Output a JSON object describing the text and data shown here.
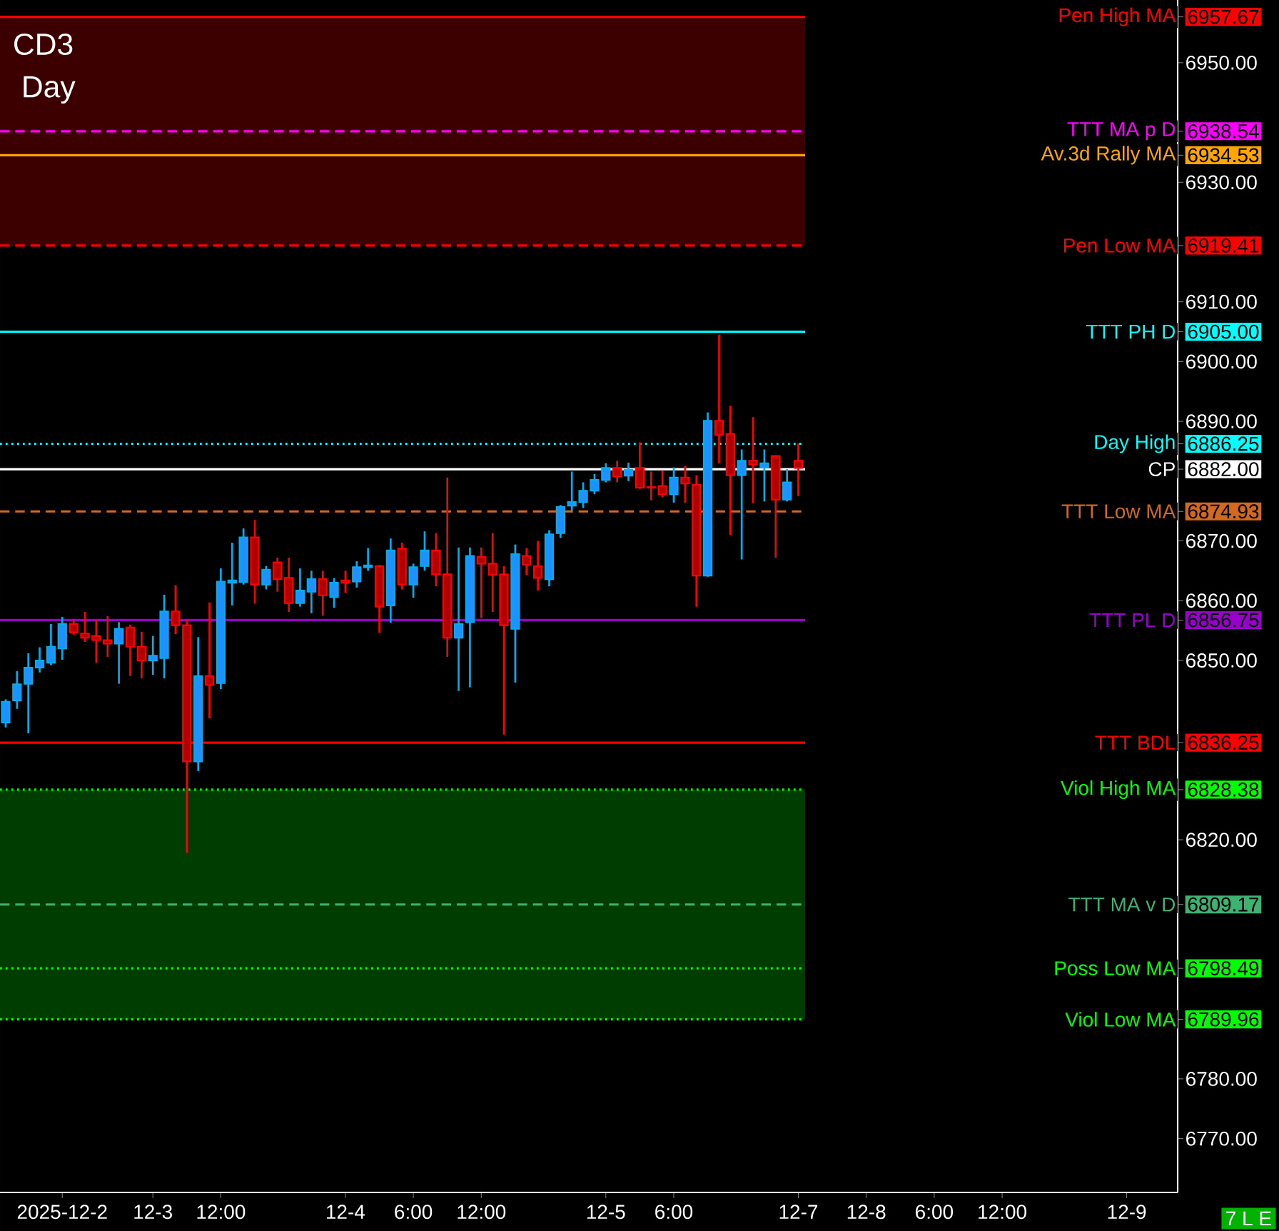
{
  "chart_data": {
    "type": "candlestick",
    "title": "CD3",
    "subtitle": "Day",
    "categories": [
      null,
      null,
      null,
      null,
      null,
      "2025-12-2",
      null,
      null,
      null,
      null,
      null,
      null,
      null,
      "12-3",
      null,
      null,
      null,
      null,
      null,
      "12:00",
      null,
      null,
      null,
      null,
      null,
      null,
      null,
      null,
      null,
      null,
      "12-4",
      null,
      null,
      null,
      null,
      null,
      "6:00",
      null,
      null,
      null,
      null,
      null,
      "12:00",
      null,
      null,
      null,
      null,
      null,
      null,
      null,
      null,
      null,
      null,
      "12-5",
      null,
      null,
      null,
      null,
      null,
      "6:00",
      null,
      null,
      null,
      null,
      null,
      null,
      null,
      null,
      null,
      null,
      "12-7",
      null,
      null,
      null,
      null,
      null,
      "12-8",
      null,
      null,
      null,
      null,
      null,
      "6:00",
      null,
      null,
      null,
      null,
      null,
      "12:00",
      null,
      null,
      null,
      null,
      null,
      null,
      null,
      null,
      null,
      null,
      "12-9",
      null,
      null,
      null,
      null
    ],
    "ohlc": [
      [
        6839.6,
        6843.5,
        6838.8,
        6843.1
      ],
      [
        6843.3,
        6848.2,
        6841.9,
        6846.0
      ],
      [
        6846.1,
        6851.2,
        6837.8,
        6848.8
      ],
      [
        6848.8,
        6852.2,
        6848.0,
        6850.0
      ],
      [
        6849.6,
        6856.1,
        6849.2,
        6852.3
      ],
      [
        6852.0,
        6857.3,
        6850.1,
        6856.1
      ],
      [
        6856.1,
        6856.9,
        6854.3,
        6854.7
      ],
      [
        6854.5,
        6858.1,
        6853.1,
        6853.8
      ],
      [
        6854.1,
        6856.8,
        6849.6,
        6853.4
      ],
      [
        6853.4,
        6857.4,
        6850.6,
        6852.8
      ],
      [
        6852.8,
        6856.4,
        6846.1,
        6855.3
      ],
      [
        6855.5,
        6856.0,
        6847.4,
        6852.3
      ],
      [
        6852.3,
        6854.8,
        6847.0,
        6850.0
      ],
      [
        6850.0,
        6854.1,
        6847.6,
        6850.8
      ],
      [
        6850.4,
        6861.0,
        6847.0,
        6858.2
      ],
      [
        6858.2,
        6862.6,
        6854.4,
        6855.9
      ],
      [
        6855.9,
        6856.9,
        6817.8,
        6833.1
      ],
      [
        6833.1,
        6853.9,
        6831.5,
        6847.4
      ],
      [
        6847.4,
        6859.7,
        6840.3,
        6845.9
      ],
      [
        6846.2,
        6865.4,
        6845.2,
        6863.2
      ],
      [
        6863.0,
        6869.7,
        6859.2,
        6863.4
      ],
      [
        6863.1,
        6872.1,
        6862.7,
        6870.6
      ],
      [
        6870.6,
        6873.5,
        6859.5,
        6862.7
      ],
      [
        6862.7,
        6865.8,
        6861.9,
        6865.2
      ],
      [
        6866.4,
        6867.2,
        6861.5,
        6863.6
      ],
      [
        6863.8,
        6867.2,
        6858.1,
        6859.6
      ],
      [
        6859.6,
        6865.4,
        6859.0,
        6861.7
      ],
      [
        6861.5,
        6865.0,
        6857.9,
        6863.6
      ],
      [
        6863.6,
        6865.0,
        6857.5,
        6860.9
      ],
      [
        6860.6,
        6863.8,
        6858.8,
        6863.0
      ],
      [
        6863.4,
        6865.0,
        6861.3,
        6863.0
      ],
      [
        6863.2,
        6866.6,
        6862.2,
        6865.6
      ],
      [
        6865.6,
        6868.8,
        6865.0,
        6865.9
      ],
      [
        6865.8,
        6866.0,
        6854.6,
        6859.0
      ],
      [
        6859.2,
        6870.4,
        6856.3,
        6868.4
      ],
      [
        6868.7,
        6869.7,
        6861.9,
        6862.7
      ],
      [
        6862.7,
        6866.2,
        6860.5,
        6865.6
      ],
      [
        6865.8,
        6871.6,
        6865.0,
        6868.4
      ],
      [
        6868.4,
        6871.3,
        6862.4,
        6864.4
      ],
      [
        6864.4,
        6880.6,
        6850.6,
        6853.8
      ],
      [
        6853.8,
        6868.9,
        6844.9,
        6856.1
      ],
      [
        6856.4,
        6868.9,
        6845.5,
        6867.5
      ],
      [
        6867.3,
        6868.9,
        6857.1,
        6866.2
      ],
      [
        6866.2,
        6871.3,
        6858.1,
        6864.3
      ],
      [
        6864.4,
        6865.8,
        6837.6,
        6855.9
      ],
      [
        6855.3,
        6869.4,
        6846.3,
        6867.8
      ],
      [
        6867.5,
        6868.8,
        6864.3,
        6866.0
      ],
      [
        6865.8,
        6870.0,
        6861.7,
        6863.8
      ],
      [
        6863.6,
        6871.8,
        6862.4,
        6871.1
      ],
      [
        6871.3,
        6876.0,
        6870.5,
        6875.7
      ],
      [
        6875.9,
        6881.6,
        6875.1,
        6876.5
      ],
      [
        6876.5,
        6879.8,
        6875.5,
        6878.4
      ],
      [
        6878.4,
        6881.2,
        6877.8,
        6880.2
      ],
      [
        6880.2,
        6883.0,
        6879.8,
        6882.2
      ],
      [
        6882.2,
        6883.4,
        6879.8,
        6880.8
      ],
      [
        6880.9,
        6883.1,
        6880.0,
        6881.9
      ],
      [
        6882.2,
        6886.5,
        6878.7,
        6878.9
      ],
      [
        6879.0,
        6881.6,
        6876.8,
        6878.9
      ],
      [
        6879.2,
        6881.8,
        6877.3,
        6877.8
      ],
      [
        6877.8,
        6882.3,
        6876.4,
        6880.6
      ],
      [
        6880.6,
        6882.6,
        6876.4,
        6879.6
      ],
      [
        6879.4,
        6881.0,
        6859.0,
        6864.2
      ],
      [
        6864.2,
        6891.5,
        6864.0,
        6890.1
      ],
      [
        6890.1,
        6904.5,
        6883.0,
        6887.7
      ],
      [
        6887.9,
        6892.6,
        6871.0,
        6881.0
      ],
      [
        6881.0,
        6885.3,
        6866.9,
        6883.4
      ],
      [
        6883.4,
        6890.7,
        6876.3,
        6882.8
      ],
      [
        6882.3,
        6885.3,
        6876.6,
        6883.0
      ],
      [
        6884.2,
        6884.3,
        6867.2,
        6876.9
      ],
      [
        6876.9,
        6882.0,
        6876.6,
        6879.8
      ],
      [
        6883.4,
        6886.3,
        6877.5,
        6882.2
      ],
      null,
      null,
      null,
      null,
      null,
      null,
      null,
      null,
      null,
      null,
      null,
      null,
      null,
      null,
      null,
      null,
      null,
      null,
      null,
      null,
      null,
      null,
      null,
      null,
      null,
      null,
      null,
      null,
      null,
      null,
      null,
      null,
      null
    ],
    "colors": [
      "#1e90ff",
      "#1e90ff",
      "#1e90ff",
      "#1e90ff",
      "#1e90ff",
      "#1e90ff",
      "#b00000",
      "#b00000",
      "#b00000",
      "#b00000",
      "#1e90ff",
      "#b00000",
      "#b00000",
      "#1e90ff",
      "#1e90ff",
      "#b00000",
      "#b00000",
      "#1e90ff",
      "#b00000",
      "#1e90ff",
      "#1e90ff",
      "#1e90ff",
      "#b00000",
      "#1e90ff",
      "#b00000",
      "#b00000",
      "#1e90ff",
      "#1e90ff",
      "#b00000",
      "#1e90ff",
      "#b00000",
      "#1e90ff",
      "#1e90ff",
      "#b00000",
      "#1e90ff",
      "#b00000",
      "#1e90ff",
      "#1e90ff",
      "#b00000",
      "#b00000",
      "#1e90ff",
      "#1e90ff",
      "#b00000",
      "#b00000",
      "#b00000",
      "#1e90ff",
      "#b00000",
      "#b00000",
      "#1e90ff",
      "#1e90ff",
      "#1e90ff",
      "#1e90ff",
      "#1e90ff",
      "#1e90ff",
      "#b00000",
      "#1e90ff",
      "#b00000",
      "#b00000",
      "#b00000",
      "#1e90ff",
      "#b00000",
      "#b00000",
      "#1e90ff",
      "#b00000",
      "#b00000",
      "#1e90ff",
      "#b00000",
      "#1e90ff",
      "#b00000",
      "#1e90ff",
      "#b00000",
      null,
      null,
      null,
      null,
      null,
      null,
      null,
      null,
      null,
      null,
      null,
      null,
      null,
      null,
      null,
      null,
      null,
      null,
      null,
      null,
      null,
      null,
      null,
      null,
      null,
      null,
      null,
      null,
      null,
      null,
      null,
      null,
      null
    ],
    "ylim": [
      6761,
      6960.5
    ],
    "yticks": [
      {
        "value": 6957.67,
        "label": "6957.67"
      },
      {
        "value": 6950,
        "label": "6950.00"
      },
      {
        "value": 6938.54,
        "label": "6938.54"
      },
      {
        "value": 6934.53,
        "label": "6934.53"
      },
      {
        "value": 6930,
        "label": "6930.00"
      },
      {
        "value": 6919.41,
        "label": "6919.41"
      },
      {
        "value": 6910,
        "label": "6910.00"
      },
      {
        "value": 6905,
        "label": "6905.00"
      },
      {
        "value": 6900,
        "label": "6900.00"
      },
      {
        "value": 6890,
        "label": "6890.00"
      },
      {
        "value": 6886.25,
        "label": "6886.25"
      },
      {
        "value": 6882,
        "label": "6882.00"
      },
      {
        "value": 6874.93,
        "label": "6874.93"
      },
      {
        "value": 6870,
        "label": "6870.00"
      },
      {
        "value": 6860,
        "label": "6860.00"
      },
      {
        "value": 6856.75,
        "label": "6856.75"
      },
      {
        "value": 6850,
        "label": "6850.00"
      },
      {
        "value": 6836.25,
        "label": "6836.25"
      },
      {
        "value": 6828.38,
        "label": "6828.38"
      },
      {
        "value": 6820,
        "label": "6820.00"
      },
      {
        "value": 6809.17,
        "label": "6809.17"
      },
      {
        "value": 6798.49,
        "label": "6798.49"
      },
      {
        "value": 6789.96,
        "label": "6789.96"
      },
      {
        "value": 6780,
        "label": "6780.00"
      },
      {
        "value": 6770,
        "label": "6770.00"
      }
    ],
    "bands": [
      {
        "axis": "y",
        "from": 6919.41,
        "to": 6957.67,
        "color": "#3d0000"
      },
      {
        "axis": "y",
        "from": 6789.96,
        "to": 6828.38,
        "color": "#003d00"
      }
    ],
    "ref_lines": [
      {
        "axis": "y",
        "value": 6957.67,
        "label": "Pen High MA",
        "color": "#ff0000",
        "line_style": "solid"
      },
      {
        "axis": "y",
        "value": 6938.54,
        "label": "TTT MA p D",
        "color": "#ff00ff",
        "line_style": "dashed"
      },
      {
        "axis": "y",
        "value": 6934.53,
        "label": "Av.3d Rally MA",
        "color": "#ffa500",
        "line_style": "solid"
      },
      {
        "axis": "y",
        "value": 6919.41,
        "label": "Pen Low MA",
        "color": "#ff0000",
        "line_style": "dashed"
      },
      {
        "axis": "y",
        "value": 6905.0,
        "label": "TTT PH D",
        "color": "#00ffff",
        "line_style": "solid"
      },
      {
        "axis": "y",
        "value": 6886.25,
        "label": "Day High",
        "color": "#00ffff",
        "line_style": "dotted"
      },
      {
        "axis": "y",
        "value": 6882.0,
        "label": "CP",
        "color": "#ffffff",
        "line_style": "solid"
      },
      {
        "axis": "y",
        "value": 6874.93,
        "label": "TTT Low MA",
        "color": "#d2691e",
        "line_style": "dashed"
      },
      {
        "axis": "y",
        "value": 6856.75,
        "label": "TTT PL D",
        "color": "#9900cc",
        "line_style": "solid"
      },
      {
        "axis": "y",
        "value": 6836.25,
        "label": "TTT BDL",
        "color": "#ff0000",
        "line_style": "solid"
      },
      {
        "axis": "y",
        "value": 6828.38,
        "label": "Viol High MA",
        "color": "#00ff00",
        "line_style": "dotted"
      },
      {
        "axis": "y",
        "value": 6809.17,
        "label": "TTT MA v D",
        "color": "#3cb371",
        "line_style": "dashed"
      },
      {
        "axis": "y",
        "value": 6798.49,
        "label": "Poss Low MA",
        "color": "#00ff00",
        "line_style": "dotted"
      },
      {
        "axis": "y",
        "value": 6789.96,
        "label": "Viol Low MA",
        "color": "#00ff00",
        "line_style": "dotted"
      }
    ],
    "annotations": [
      "7 L E"
    ]
  }
}
